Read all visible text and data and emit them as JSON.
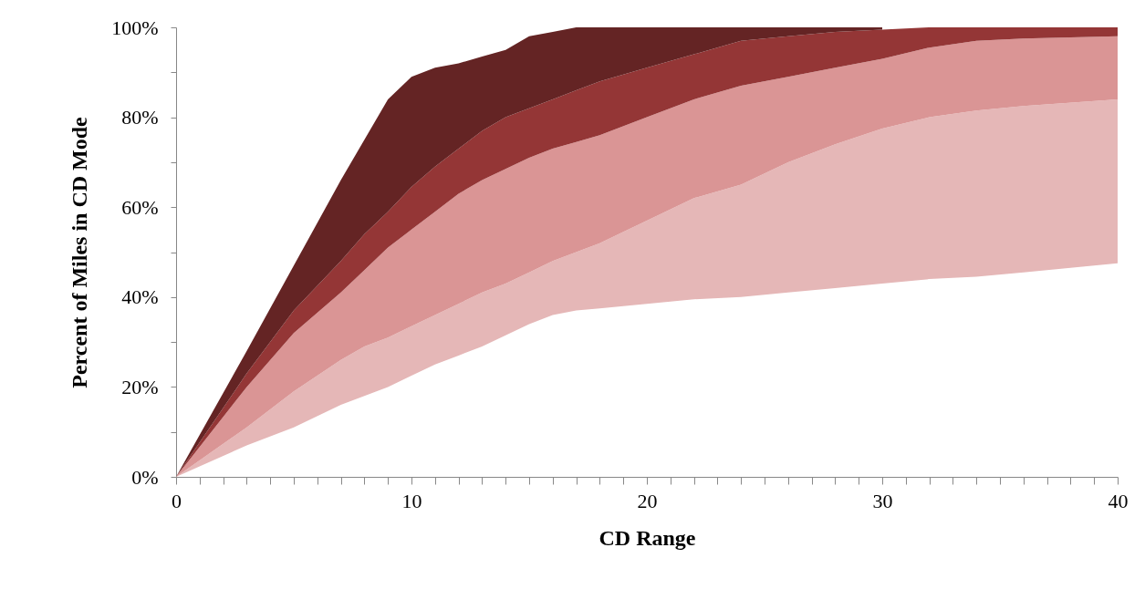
{
  "chart_data": {
    "type": "area",
    "stacked": true,
    "xlabel": "CD Range",
    "ylabel": "Percent of Miles in CD Mode",
    "xlim": [
      0,
      40
    ],
    "ylim": [
      0,
      100
    ],
    "xticks": [
      0,
      {
        "value": 1,
        "label": null
      },
      {
        "value": 2,
        "label": null
      },
      {
        "value": 3,
        "label": null
      },
      {
        "value": 4,
        "label": null
      },
      {
        "value": 5,
        "label": null
      },
      {
        "value": 6,
        "label": null
      },
      {
        "value": 7,
        "label": null
      },
      {
        "value": 8,
        "label": null
      },
      {
        "value": 9,
        "label": null
      },
      10,
      {
        "value": 11,
        "label": null
      },
      {
        "value": 12,
        "label": null
      },
      {
        "value": 13,
        "label": null
      },
      {
        "value": 14,
        "label": null
      },
      {
        "value": 15,
        "label": null
      },
      {
        "value": 16,
        "label": null
      },
      {
        "value": 17,
        "label": null
      },
      {
        "value": 18,
        "label": null
      },
      {
        "value": 19,
        "label": null
      },
      20,
      {
        "value": 21,
        "label": null
      },
      {
        "value": 22,
        "label": null
      },
      {
        "value": 23,
        "label": null
      },
      {
        "value": 24,
        "label": null
      },
      {
        "value": 25,
        "label": null
      },
      {
        "value": 26,
        "label": null
      },
      {
        "value": 27,
        "label": null
      },
      {
        "value": 28,
        "label": null
      },
      {
        "value": 29,
        "label": null
      },
      30,
      {
        "value": 31,
        "label": null
      },
      {
        "value": 32,
        "label": null
      },
      {
        "value": 33,
        "label": null
      },
      {
        "value": 34,
        "label": null
      },
      {
        "value": 35,
        "label": null
      },
      {
        "value": 36,
        "label": null
      },
      {
        "value": 37,
        "label": null
      },
      {
        "value": 38,
        "label": null
      },
      {
        "value": 39,
        "label": null
      },
      40
    ],
    "yticks": [
      {
        "value": 0,
        "label": "0%"
      },
      {
        "value": 10,
        "label": null
      },
      {
        "value": 20,
        "label": "20%"
      },
      {
        "value": 30,
        "label": null
      },
      {
        "value": 40,
        "label": "40%"
      },
      {
        "value": 50,
        "label": null
      },
      {
        "value": 60,
        "label": "60%"
      },
      {
        "value": 70,
        "label": null
      },
      {
        "value": 80,
        "label": "80%"
      },
      {
        "value": 90,
        "label": null
      },
      {
        "value": 100,
        "label": "100%"
      }
    ],
    "grid": false,
    "x": [
      0,
      3,
      5,
      7,
      8,
      9,
      10,
      11,
      12,
      13,
      14,
      15,
      16,
      17,
      18,
      20,
      22,
      24,
      26,
      28,
      30,
      32,
      34,
      36,
      40
    ],
    "series": [
      {
        "color": "#ffffff",
        "values": [
          0,
          7,
          11,
          16,
          18,
          20,
          22.5,
          25,
          27,
          29,
          31.5,
          34,
          36,
          37,
          37.5,
          38.5,
          39.5,
          40,
          41,
          42,
          43,
          44,
          44.5,
          45.5,
          47.5
        ]
      },
      {
        "color": "#e5b7b7",
        "values": [
          0,
          4,
          8,
          10,
          11,
          11,
          11,
          11,
          11.5,
          12,
          11.5,
          11.5,
          12,
          13,
          14.5,
          18.5,
          22.5,
          25,
          29,
          32,
          34.5,
          36,
          37,
          37,
          36.5
        ]
      },
      {
        "color": "#da9595",
        "values": [
          0,
          9,
          13,
          15,
          17,
          20,
          21.5,
          23,
          24.5,
          25,
          25.5,
          25.5,
          25,
          24.5,
          24,
          23,
          22,
          22,
          19,
          17,
          15.5,
          15.5,
          15.5,
          15,
          14
        ]
      },
      {
        "color": "#943636",
        "values": [
          0,
          3,
          5,
          7,
          8,
          8,
          9.5,
          10,
          10,
          11,
          11.5,
          11,
          11,
          11.5,
          12,
          11,
          10,
          10,
          9,
          8,
          6.5,
          4.5,
          3,
          2.5,
          2
        ]
      },
      {
        "color": "#642424",
        "values": [
          0,
          5,
          10,
          18,
          21,
          25,
          24.5,
          22,
          19,
          16.5,
          15,
          16,
          15,
          14,
          12,
          9,
          6,
          3,
          2,
          1,
          0.5,
          null,
          null,
          null,
          null
        ]
      }
    ]
  }
}
